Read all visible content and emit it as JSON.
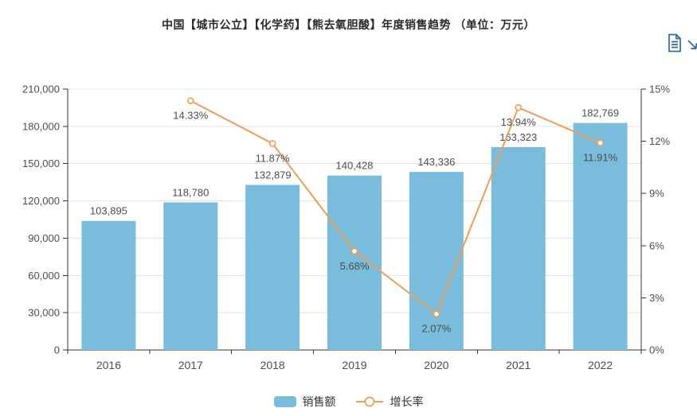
{
  "title": "中国【城市公立】【化学药】【熊去氧胆酸】年度销售趋势 （单位：万元）",
  "toolbar": {
    "color": "#2d6a9f",
    "icons": [
      "data-view-icon",
      "save-image-icon"
    ]
  },
  "colors": {
    "bar": "#7abcdb",
    "line": "#ee9e55",
    "axis_line": "#333333",
    "grid_line": "#e0e0e6",
    "tick_label": "#4d4d4d",
    "data_label": "#4d4d4d",
    "title_text": "#2b2b2b",
    "background": "#ffffff"
  },
  "chart_data": {
    "type": "bar+line",
    "title": "中国【城市公立】【化学药】【熊去氧胆酸】年度销售趋势 （单位：万元）",
    "categories": [
      "2016",
      "2017",
      "2018",
      "2019",
      "2020",
      "2021",
      "2022"
    ],
    "series": [
      {
        "name": "销售额",
        "type": "bar",
        "axis": "left",
        "color": "#7abcdb",
        "values": [
          103895,
          118780,
          132879,
          140428,
          143336,
          163323,
          182769
        ],
        "labels": [
          "103,895",
          "118,780",
          "132,879",
          "140,428",
          "143,336",
          "163,323",
          "182,769"
        ]
      },
      {
        "name": "增长率",
        "type": "line",
        "axis": "right",
        "color": "#ee9e55",
        "values": [
          null,
          14.33,
          11.87,
          5.68,
          2.07,
          13.94,
          11.91
        ],
        "labels": [
          null,
          "14.33%",
          "11.87%",
          "5.68%",
          "2.07%",
          "13.94%",
          "11.91%"
        ]
      }
    ],
    "left_axis": {
      "min": 0,
      "max": 210000,
      "step": 30000,
      "tick_labels": [
        "0",
        "30,000",
        "60,000",
        "90,000",
        "120,000",
        "150,000",
        "180,000",
        "210,000"
      ]
    },
    "right_axis": {
      "min": 0,
      "max": 15,
      "step": 3,
      "tick_labels": [
        "0%",
        "3%",
        "6%",
        "9%",
        "12%",
        "15%"
      ]
    },
    "grid": true,
    "legend_position": "bottom"
  }
}
